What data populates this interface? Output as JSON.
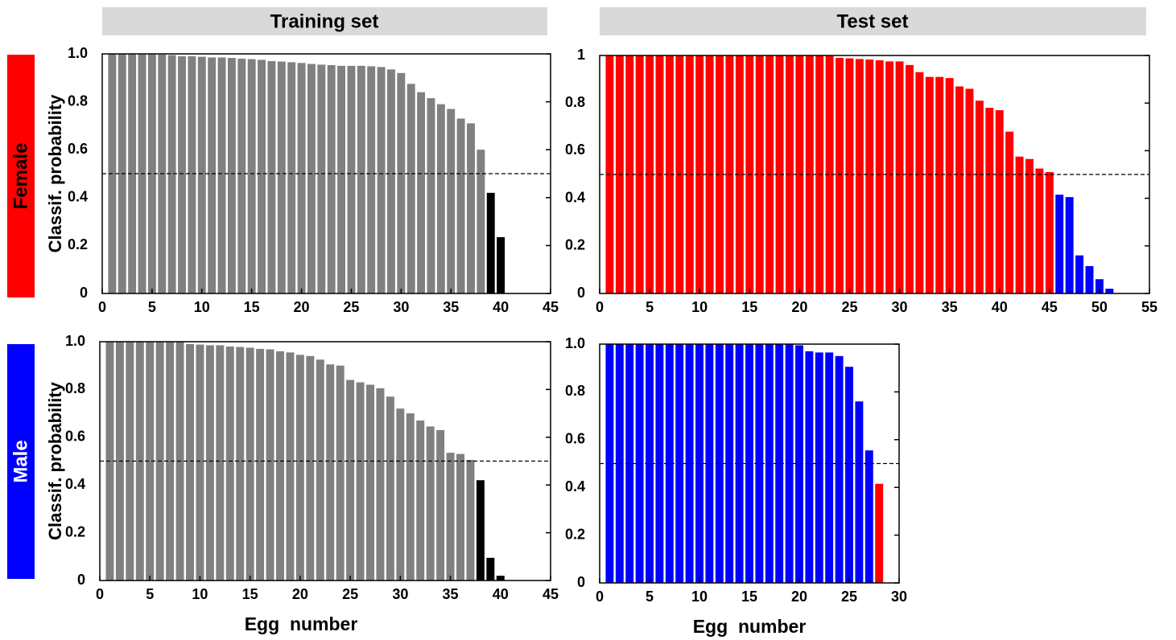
{
  "column_titles": [
    "Training set",
    "Test set"
  ],
  "row_titles": [
    "Female",
    "Male"
  ],
  "chart_data": [
    {
      "type": "bar",
      "y_label": "Classif. probability",
      "x": [
        1,
        2,
        3,
        4,
        5,
        6,
        7,
        8,
        9,
        10,
        11,
        12,
        13,
        14,
        15,
        16,
        17,
        18,
        19,
        20,
        21,
        22,
        23,
        24,
        25,
        26,
        27,
        28,
        29,
        30,
        31,
        32,
        33,
        34,
        35,
        36,
        37,
        38,
        39,
        40
      ],
      "values": [
        1.0,
        1.0,
        1.0,
        0.998,
        0.998,
        0.997,
        0.995,
        0.99,
        0.99,
        0.988,
        0.985,
        0.985,
        0.983,
        0.98,
        0.978,
        0.975,
        0.97,
        0.968,
        0.965,
        0.962,
        0.958,
        0.955,
        0.953,
        0.95,
        0.95,
        0.95,
        0.948,
        0.945,
        0.935,
        0.92,
        0.875,
        0.84,
        0.815,
        0.79,
        0.77,
        0.73,
        0.71,
        0.6,
        0.42,
        0.235
      ],
      "colors": [
        "#808080",
        "#808080",
        "#808080",
        "#808080",
        "#808080",
        "#808080",
        "#808080",
        "#808080",
        "#808080",
        "#808080",
        "#808080",
        "#808080",
        "#808080",
        "#808080",
        "#808080",
        "#808080",
        "#808080",
        "#808080",
        "#808080",
        "#808080",
        "#808080",
        "#808080",
        "#808080",
        "#808080",
        "#808080",
        "#808080",
        "#808080",
        "#808080",
        "#808080",
        "#808080",
        "#808080",
        "#808080",
        "#808080",
        "#808080",
        "#808080",
        "#808080",
        "#808080",
        "#808080",
        "#000000",
        "#000000"
      ],
      "xlim": [
        0,
        45
      ],
      "xticks": [
        0,
        5,
        10,
        15,
        20,
        25,
        30,
        35,
        40,
        45
      ],
      "ylim": [
        0,
        1
      ],
      "yticks": [
        0,
        0.2,
        0.4,
        0.6,
        0.8,
        {
          "value": 1,
          "label": "1.0"
        }
      ],
      "threshold": 0.5
    },
    {
      "type": "bar",
      "x": [
        1,
        2,
        3,
        4,
        5,
        6,
        7,
        8,
        9,
        10,
        11,
        12,
        13,
        14,
        15,
        16,
        17,
        18,
        19,
        20,
        21,
        22,
        23,
        24,
        25,
        26,
        27,
        28,
        29,
        30,
        31,
        32,
        33,
        34,
        35,
        36,
        37,
        38,
        39,
        40,
        41,
        42,
        43,
        44,
        45,
        46,
        47,
        48,
        49,
        50,
        51
      ],
      "values": [
        1.0,
        1.0,
        1.0,
        1.0,
        1.0,
        1.0,
        1.0,
        1.0,
        1.0,
        1.0,
        1.0,
        1.0,
        1.0,
        1.0,
        1.0,
        1.0,
        1.0,
        1.0,
        1.0,
        1.0,
        1.0,
        1.0,
        0.998,
        0.99,
        0.988,
        0.985,
        0.983,
        0.98,
        0.975,
        0.975,
        0.96,
        0.93,
        0.91,
        0.91,
        0.905,
        0.87,
        0.86,
        0.81,
        0.78,
        0.77,
        0.68,
        0.575,
        0.565,
        0.525,
        0.51,
        0.415,
        0.405,
        0.16,
        0.115,
        0.06,
        0.02
      ],
      "colors": [
        "#ff0000",
        "#ff0000",
        "#ff0000",
        "#ff0000",
        "#ff0000",
        "#ff0000",
        "#ff0000",
        "#ff0000",
        "#ff0000",
        "#ff0000",
        "#ff0000",
        "#ff0000",
        "#ff0000",
        "#ff0000",
        "#ff0000",
        "#ff0000",
        "#ff0000",
        "#ff0000",
        "#ff0000",
        "#ff0000",
        "#ff0000",
        "#ff0000",
        "#ff0000",
        "#ff0000",
        "#ff0000",
        "#ff0000",
        "#ff0000",
        "#ff0000",
        "#ff0000",
        "#ff0000",
        "#ff0000",
        "#ff0000",
        "#ff0000",
        "#ff0000",
        "#ff0000",
        "#ff0000",
        "#ff0000",
        "#ff0000",
        "#ff0000",
        "#ff0000",
        "#ff0000",
        "#ff0000",
        "#ff0000",
        "#ff0000",
        "#ff0000",
        "#0000ff",
        "#0000ff",
        "#0000ff",
        "#0000ff",
        "#0000ff",
        "#0000ff"
      ],
      "xlim": [
        0,
        55
      ],
      "xticks": [
        0,
        5,
        10,
        15,
        20,
        25,
        30,
        35,
        40,
        45,
        50,
        55
      ],
      "ylim": [
        0,
        1
      ],
      "yticks": [
        0,
        0.2,
        0.4,
        0.6,
        0.8,
        1
      ],
      "threshold": 0.5
    },
    {
      "type": "bar",
      "y_label": "Classif. probability",
      "x_label": "Egg  number",
      "x": [
        1,
        2,
        3,
        4,
        5,
        6,
        7,
        8,
        9,
        10,
        11,
        12,
        13,
        14,
        15,
        16,
        17,
        18,
        19,
        20,
        21,
        22,
        23,
        24,
        25,
        26,
        27,
        28,
        29,
        30,
        31,
        32,
        33,
        34,
        35,
        36,
        37,
        38,
        39,
        40
      ],
      "values": [
        1.0,
        1.0,
        1.0,
        1.0,
        1.0,
        1.0,
        1.0,
        1.0,
        0.99,
        0.988,
        0.985,
        0.985,
        0.98,
        0.978,
        0.975,
        0.97,
        0.968,
        0.96,
        0.955,
        0.945,
        0.94,
        0.925,
        0.905,
        0.9,
        0.84,
        0.83,
        0.82,
        0.805,
        0.77,
        0.72,
        0.7,
        0.67,
        0.645,
        0.63,
        0.535,
        0.53,
        0.505,
        0.42,
        0.095,
        0.02
      ],
      "colors": [
        "#808080",
        "#808080",
        "#808080",
        "#808080",
        "#808080",
        "#808080",
        "#808080",
        "#808080",
        "#808080",
        "#808080",
        "#808080",
        "#808080",
        "#808080",
        "#808080",
        "#808080",
        "#808080",
        "#808080",
        "#808080",
        "#808080",
        "#808080",
        "#808080",
        "#808080",
        "#808080",
        "#808080",
        "#808080",
        "#808080",
        "#808080",
        "#808080",
        "#808080",
        "#808080",
        "#808080",
        "#808080",
        "#808080",
        "#808080",
        "#808080",
        "#808080",
        "#808080",
        "#000000",
        "#000000",
        "#000000"
      ],
      "xlim": [
        0,
        45
      ],
      "xticks": [
        0,
        5,
        10,
        15,
        20,
        25,
        30,
        35,
        40,
        45
      ],
      "ylim": [
        0,
        1
      ],
      "yticks": [
        0,
        0.2,
        0.4,
        0.6,
        0.8,
        {
          "value": 1,
          "label": "1.0"
        }
      ],
      "threshold": 0.5
    },
    {
      "type": "bar",
      "x_label": "Egg  number",
      "x": [
        1,
        2,
        3,
        4,
        5,
        6,
        7,
        8,
        9,
        10,
        11,
        12,
        13,
        14,
        15,
        16,
        17,
        18,
        19,
        20,
        21,
        22,
        23,
        24,
        25,
        26,
        27,
        28
      ],
      "values": [
        1.0,
        1.0,
        1.0,
        1.0,
        1.0,
        1.0,
        1.0,
        1.0,
        1.0,
        1.0,
        1.0,
        1.0,
        1.0,
        1.0,
        1.0,
        1.0,
        1.0,
        1.0,
        1.0,
        0.995,
        0.97,
        0.965,
        0.965,
        0.95,
        0.905,
        0.76,
        0.555,
        0.415
      ],
      "colors": [
        "#0000ff",
        "#0000ff",
        "#0000ff",
        "#0000ff",
        "#0000ff",
        "#0000ff",
        "#0000ff",
        "#0000ff",
        "#0000ff",
        "#0000ff",
        "#0000ff",
        "#0000ff",
        "#0000ff",
        "#0000ff",
        "#0000ff",
        "#0000ff",
        "#0000ff",
        "#0000ff",
        "#0000ff",
        "#0000ff",
        "#0000ff",
        "#0000ff",
        "#0000ff",
        "#0000ff",
        "#0000ff",
        "#0000ff",
        "#0000ff",
        "#ff0000"
      ],
      "xlim": [
        0,
        30
      ],
      "xticks": [
        0,
        5,
        10,
        15,
        20,
        25,
        30
      ],
      "ylim": [
        0,
        1
      ],
      "yticks": [
        0,
        0.2,
        0.4,
        0.6,
        0.8,
        {
          "value": 1,
          "label": "1.0"
        }
      ],
      "threshold": 0.5
    }
  ]
}
